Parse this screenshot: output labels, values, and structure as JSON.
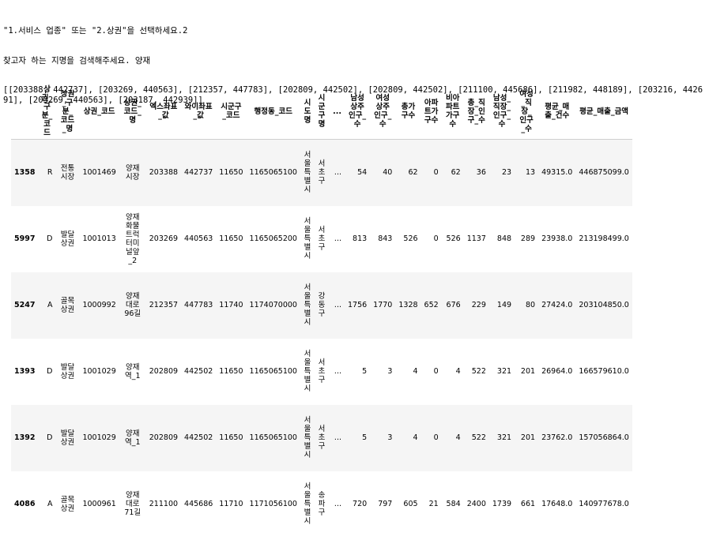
{
  "output": {
    "line1": "\"1.서비스 업종\" 또는 \"2.상권\"을 선택하세요.2",
    "line2": "찾고자 하는 지명을 검색해주세요. 양재",
    "line3": "[[203388, 442737], [203269, 440563], [212357, 447783], [202809, 442502], [202809, 442502], [211100, 445686], [211982, 448189], [203216, 442691], [203269, 440563], [203187, 442939]]"
  },
  "table": {
    "columns": [
      "",
      "상권_구분_코드",
      "상권_구분_코드_명",
      "상권_코드",
      "상권_코드_명",
      "엑스좌표_값",
      "와이좌표_값",
      "시군구_코드",
      "행정동_코드",
      "시도명",
      "시군구명",
      "...",
      "남성상주인구_수",
      "여성상주인구_수",
      "총가구수",
      "아파트가구수",
      "비아파트가구수",
      "총_직장_인구_수",
      "남성_직장_인구_수",
      "여성_직장_인구_수",
      "평균_매출_건수",
      "평균_매출_금액"
    ],
    "rows": [
      [
        "1358",
        "R",
        "전통시장",
        "1001469",
        "양재시장",
        "203388",
        "442737",
        "11650",
        "1165065100",
        "서울특별시",
        "서초구",
        "...",
        "54",
        "40",
        "62",
        "0",
        "62",
        "36",
        "23",
        "13",
        "49315.0",
        "446875099.0"
      ],
      [
        "5997",
        "D",
        "발달상권",
        "1001013",
        "양재화물트럭터미널앞_2",
        "203269",
        "440563",
        "11650",
        "1165065200",
        "서울특별시",
        "서초구",
        "...",
        "813",
        "843",
        "526",
        "0",
        "526",
        "1137",
        "848",
        "289",
        "23938.0",
        "213198499.0"
      ],
      [
        "5247",
        "A",
        "골목상권",
        "1000992",
        "양재대로96길",
        "212357",
        "447783",
        "11740",
        "1174070000",
        "서울특별시",
        "강동구",
        "...",
        "1756",
        "1770",
        "1328",
        "652",
        "676",
        "229",
        "149",
        "80",
        "27424.0",
        "203104850.0"
      ],
      [
        "1393",
        "D",
        "발달상권",
        "1001029",
        "양재역_1",
        "202809",
        "442502",
        "11650",
        "1165065100",
        "서울특별시",
        "서초구",
        "...",
        "5",
        "3",
        "4",
        "0",
        "4",
        "522",
        "321",
        "201",
        "26964.0",
        "166579610.0"
      ],
      [
        "1392",
        "D",
        "발달상권",
        "1001029",
        "양재역_1",
        "202809",
        "442502",
        "11650",
        "1165065100",
        "서울특별시",
        "서초구",
        "...",
        "5",
        "3",
        "4",
        "0",
        "4",
        "522",
        "321",
        "201",
        "23762.0",
        "157056864.0"
      ],
      [
        "4086",
        "A",
        "골목상권",
        "1000961",
        "양재대로71길",
        "211100",
        "445686",
        "11710",
        "1171056100",
        "서울특별시",
        "송파구",
        "...",
        "720",
        "797",
        "605",
        "21",
        "584",
        "2400",
        "1739",
        "661",
        "17648.0",
        "140977678.0"
      ]
    ]
  }
}
